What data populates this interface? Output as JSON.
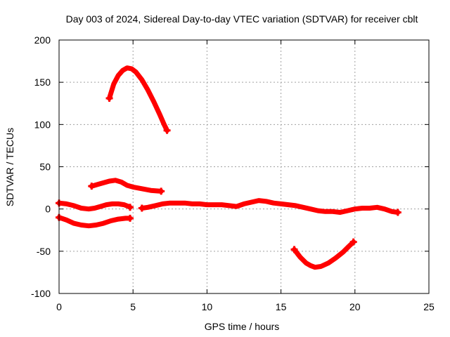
{
  "chart_data": {
    "type": "line",
    "title": "Day 003 of 2024, Sidereal Day-to-day VTEC variation (SDTVAR) for receiver cblt",
    "xlabel": "GPS time / hours",
    "ylabel": "SDTVAR / TECUs",
    "xlim": [
      0,
      25
    ],
    "ylim": [
      -100,
      200
    ],
    "xticks": [
      0,
      5,
      10,
      15,
      20,
      25
    ],
    "yticks": [
      -100,
      -50,
      0,
      50,
      100,
      150,
      200
    ],
    "grid": true,
    "color": "#ff0000",
    "series": [
      {
        "name": "arc-1",
        "points": [
          [
            3.4,
            131
          ],
          [
            3.7,
            148
          ],
          [
            4.0,
            158
          ],
          [
            4.3,
            164
          ],
          [
            4.6,
            167
          ],
          [
            4.9,
            166
          ],
          [
            5.2,
            162
          ],
          [
            5.6,
            153
          ],
          [
            6.0,
            141
          ],
          [
            6.4,
            127
          ],
          [
            6.8,
            112
          ],
          [
            7.1,
            100
          ],
          [
            7.3,
            93
          ]
        ]
      },
      {
        "name": "arc-2",
        "points": [
          [
            2.2,
            27
          ],
          [
            2.6,
            29
          ],
          [
            3.0,
            31
          ],
          [
            3.4,
            33
          ],
          [
            3.8,
            34
          ],
          [
            4.2,
            32
          ],
          [
            4.6,
            28
          ],
          [
            5.0,
            26
          ],
          [
            5.6,
            24
          ],
          [
            6.2,
            22
          ],
          [
            6.9,
            21
          ]
        ]
      },
      {
        "name": "arc-3",
        "points": [
          [
            0.0,
            7
          ],
          [
            0.5,
            6
          ],
          [
            1.0,
            4
          ],
          [
            1.5,
            1
          ],
          [
            2.0,
            0
          ],
          [
            2.4,
            1
          ],
          [
            2.8,
            3
          ],
          [
            3.2,
            5
          ],
          [
            3.6,
            6
          ],
          [
            4.0,
            6
          ],
          [
            4.4,
            5
          ],
          [
            4.7,
            3
          ],
          [
            4.8,
            2
          ]
        ]
      },
      {
        "name": "arc-4",
        "points": [
          [
            0.0,
            -10
          ],
          [
            0.5,
            -13
          ],
          [
            1.0,
            -17
          ],
          [
            1.5,
            -19
          ],
          [
            2.0,
            -20
          ],
          [
            2.5,
            -19
          ],
          [
            3.0,
            -17
          ],
          [
            3.5,
            -14
          ],
          [
            4.0,
            -12
          ],
          [
            4.5,
            -11
          ],
          [
            4.8,
            -11
          ]
        ]
      },
      {
        "name": "arc-5",
        "points": [
          [
            5.6,
            1
          ],
          [
            6.0,
            2
          ],
          [
            6.5,
            4
          ],
          [
            7.0,
            6
          ],
          [
            7.5,
            7
          ],
          [
            8.0,
            7
          ],
          [
            8.5,
            7
          ],
          [
            9.0,
            6
          ],
          [
            9.5,
            6
          ],
          [
            10.0,
            5
          ],
          [
            10.5,
            5
          ],
          [
            11.0,
            5
          ],
          [
            11.5,
            4
          ],
          [
            12.0,
            3
          ],
          [
            12.5,
            6
          ],
          [
            13.0,
            8
          ],
          [
            13.5,
            10
          ],
          [
            14.0,
            9
          ],
          [
            14.5,
            7
          ],
          [
            15.0,
            6
          ],
          [
            15.5,
            5
          ],
          [
            16.0,
            4
          ],
          [
            16.5,
            2
          ],
          [
            17.0,
            0
          ],
          [
            17.5,
            -2
          ],
          [
            18.0,
            -3
          ],
          [
            18.5,
            -3
          ],
          [
            19.0,
            -4
          ],
          [
            19.5,
            -2
          ],
          [
            20.0,
            0
          ],
          [
            20.5,
            1
          ],
          [
            21.0,
            1
          ],
          [
            21.5,
            2
          ],
          [
            22.0,
            0
          ],
          [
            22.5,
            -3
          ],
          [
            22.9,
            -4
          ]
        ]
      },
      {
        "name": "arc-6",
        "points": [
          [
            15.9,
            -48
          ],
          [
            16.3,
            -57
          ],
          [
            16.7,
            -64
          ],
          [
            17.0,
            -67
          ],
          [
            17.3,
            -69
          ],
          [
            17.7,
            -68
          ],
          [
            18.2,
            -64
          ],
          [
            18.7,
            -58
          ],
          [
            19.2,
            -51
          ],
          [
            19.6,
            -44
          ],
          [
            19.9,
            -39
          ]
        ]
      }
    ]
  }
}
